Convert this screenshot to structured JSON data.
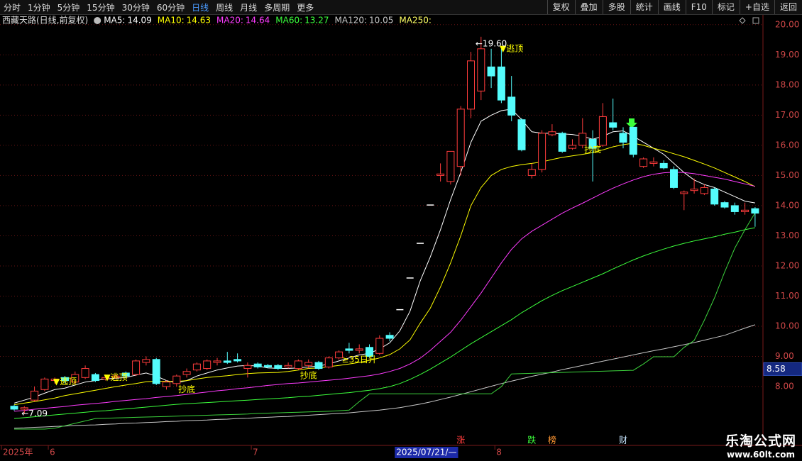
{
  "toolbar": {
    "left": [
      "分时",
      "1分钟",
      "5分钟",
      "15分钟",
      "30分钟",
      "60分钟",
      "日线",
      "周线",
      "月线",
      "多周期",
      "更多"
    ],
    "active": 6,
    "right": [
      "复权",
      "叠加",
      "多股",
      "统计",
      "画线",
      "F10",
      "标记",
      "+自选",
      "返回"
    ]
  },
  "watermark": {
    "title": "乐淘公式网",
    "url": "www.60lt.com"
  },
  "chart_data": {
    "type": "candlestick",
    "title": "西藏天路(日线,前复权)",
    "categories": [
      "2025年",
      null,
      null,
      null,
      "6",
      null,
      null,
      null,
      null,
      null,
      null,
      null,
      null,
      null,
      null,
      null,
      null,
      null,
      null,
      null,
      null,
      null,
      null,
      null,
      "7",
      null,
      null,
      null,
      null,
      null,
      null,
      null,
      null,
      null,
      null,
      null,
      null,
      null,
      "2025/07/21/—",
      null,
      null,
      null,
      null,
      null,
      null,
      null,
      null,
      null,
      "8",
      null,
      null,
      null,
      null,
      null,
      null,
      null,
      null,
      null,
      null,
      null,
      null,
      null,
      null,
      null,
      null,
      null,
      null,
      null,
      null,
      null,
      null,
      null,
      null,
      null
    ],
    "highlighted_category": 38,
    "open": [
      7.35,
      7.25,
      7.55,
      7.9,
      8.2,
      8.3,
      8.15,
      8.3,
      8.4,
      8.25,
      8.3,
      8.45,
      8.4,
      8.8,
      8.9,
      8.0,
      8.1,
      8.4,
      8.55,
      8.6,
      8.8,
      8.85,
      8.9,
      8.6,
      8.75,
      8.7,
      8.7,
      8.65,
      8.6,
      8.7,
      8.8,
      8.65,
      8.95,
      9.25,
      9.2,
      9.3,
      9.1,
      9.7,
      10.55,
      11.6,
      12.75,
      14.02,
      15.0,
      14.8,
      15.3,
      17.2,
      17.8,
      18.6,
      18.6,
      17.6,
      16.85,
      15.0,
      15.2,
      16.35,
      16.4,
      15.9,
      16.0,
      16.2,
      16.0,
      16.75,
      16.4,
      16.6,
      15.3,
      15.4,
      15.4,
      15.2,
      14.4,
      14.5,
      14.4,
      14.55,
      14.1,
      14.0,
      13.8,
      13.9
    ],
    "high": [
      7.4,
      7.35,
      8.0,
      8.3,
      8.3,
      8.35,
      8.5,
      8.7,
      8.45,
      8.4,
      8.4,
      8.5,
      8.9,
      9.0,
      8.95,
      8.2,
      8.4,
      8.6,
      8.8,
      8.9,
      8.95,
      9.15,
      9.1,
      8.8,
      8.8,
      8.75,
      8.75,
      8.8,
      8.9,
      8.9,
      8.85,
      9.0,
      9.2,
      9.45,
      9.4,
      9.4,
      9.7,
      9.8,
      10.55,
      11.6,
      12.75,
      14.02,
      15.4,
      15.8,
      17.3,
      19.1,
      19.6,
      19.2,
      19.2,
      18.3,
      16.9,
      15.4,
      16.5,
      16.7,
      16.45,
      16.2,
      16.9,
      16.5,
      17.4,
      17.55,
      16.6,
      16.6,
      15.6,
      15.6,
      15.5,
      15.3,
      14.5,
      14.9,
      14.7,
      14.6,
      14.15,
      14.1,
      14.1,
      13.95
    ],
    "low": [
      7.2,
      7.09,
      7.5,
      7.85,
      8.1,
      8.1,
      8.1,
      8.25,
      8.15,
      8.2,
      8.25,
      8.3,
      8.35,
      8.7,
      8.05,
      7.9,
      8.0,
      8.3,
      8.5,
      8.55,
      8.7,
      8.75,
      8.8,
      8.3,
      8.6,
      8.6,
      8.55,
      8.6,
      8.55,
      8.6,
      8.55,
      8.6,
      8.9,
      9.1,
      9.1,
      8.95,
      9.05,
      9.5,
      10.55,
      11.6,
      12.75,
      14.02,
      14.8,
      14.7,
      15.0,
      16.9,
      17.5,
      17.9,
      17.4,
      16.8,
      15.8,
      14.9,
      15.1,
      16.3,
      15.75,
      15.85,
      15.9,
      14.8,
      15.95,
      16.5,
      15.9,
      15.6,
      15.25,
      15.3,
      15.2,
      14.55,
      13.85,
      14.4,
      14.35,
      14.0,
      13.9,
      13.7,
      13.7,
      13.3
    ],
    "close": [
      7.25,
      7.3,
      7.85,
      8.25,
      8.25,
      8.2,
      8.4,
      8.6,
      8.2,
      8.3,
      8.35,
      8.35,
      8.85,
      8.9,
      8.1,
      8.15,
      8.35,
      8.5,
      8.75,
      8.85,
      8.85,
      8.8,
      8.85,
      8.7,
      8.65,
      8.65,
      8.6,
      8.7,
      8.85,
      8.8,
      8.6,
      8.95,
      9.15,
      9.2,
      9.25,
      9.0,
      9.6,
      9.6,
      10.55,
      11.6,
      12.75,
      14.02,
      15.05,
      15.8,
      17.2,
      18.8,
      19.2,
      18.3,
      17.5,
      17.0,
      15.85,
      15.2,
      16.4,
      16.45,
      15.8,
      16.0,
      16.4,
      15.9,
      16.95,
      16.6,
      16.1,
      15.7,
      15.55,
      15.45,
      15.25,
      14.6,
      14.45,
      14.55,
      14.6,
      14.05,
      13.95,
      13.8,
      13.85,
      13.75
    ],
    "up_color": "#ff3c3c",
    "down_color": "#54fcfc",
    "flat_color": "#ffffff",
    "series": [
      {
        "name": "MA5:",
        "color": "#ffffff",
        "values": [
          7.45,
          7.55,
          7.65,
          7.78,
          7.9,
          7.95,
          8.05,
          8.15,
          8.2,
          8.25,
          8.28,
          8.3,
          8.38,
          8.45,
          8.35,
          8.2,
          8.12,
          8.2,
          8.35,
          8.45,
          8.55,
          8.62,
          8.68,
          8.7,
          8.68,
          8.62,
          8.6,
          8.6,
          8.62,
          8.65,
          8.68,
          8.75,
          8.85,
          8.95,
          9.05,
          9.1,
          9.25,
          9.45,
          9.85,
          10.5,
          11.5,
          12.3,
          13.2,
          14.2,
          15.1,
          16.1,
          16.8,
          17.0,
          17.15,
          17.2,
          16.85,
          16.45,
          16.4,
          16.4,
          16.38,
          16.36,
          16.3,
          16.2,
          16.3,
          16.45,
          16.48,
          16.3,
          16.1,
          15.9,
          15.7,
          15.4,
          15.1,
          14.85,
          14.7,
          14.6,
          14.45,
          14.3,
          14.15,
          14.09
        ]
      },
      {
        "name": "MA10:",
        "color": "#ffff00",
        "values": [
          7.4,
          7.45,
          7.5,
          7.56,
          7.62,
          7.7,
          7.76,
          7.82,
          7.88,
          7.94,
          8.0,
          8.05,
          8.1,
          8.16,
          8.18,
          8.17,
          8.17,
          8.2,
          8.25,
          8.3,
          8.33,
          8.36,
          8.4,
          8.43,
          8.45,
          8.46,
          8.47,
          8.5,
          8.55,
          8.6,
          8.62,
          8.66,
          8.7,
          8.75,
          8.8,
          8.87,
          8.95,
          9.06,
          9.25,
          9.55,
          10.1,
          10.6,
          11.3,
          12.1,
          13.0,
          14.0,
          14.6,
          15.0,
          15.2,
          15.3,
          15.36,
          15.4,
          15.45,
          15.53,
          15.6,
          15.65,
          15.7,
          15.76,
          15.85,
          15.95,
          16.02,
          16.07,
          16.0,
          15.9,
          15.82,
          15.72,
          15.62,
          15.5,
          15.38,
          15.25,
          15.1,
          14.95,
          14.8,
          14.63
        ]
      },
      {
        "name": "MA20:",
        "color": "#ff3cff",
        "values": [
          7.18,
          7.21,
          7.25,
          7.28,
          7.31,
          7.34,
          7.38,
          7.41,
          7.44,
          7.47,
          7.51,
          7.54,
          7.57,
          7.6,
          7.64,
          7.67,
          7.7,
          7.74,
          7.78,
          7.82,
          7.86,
          7.89,
          7.93,
          7.96,
          8.0,
          8.04,
          8.07,
          8.1,
          8.12,
          8.15,
          8.18,
          8.21,
          8.24,
          8.28,
          8.32,
          8.36,
          8.42,
          8.5,
          8.6,
          8.75,
          8.94,
          9.2,
          9.5,
          9.8,
          10.2,
          10.65,
          11.1,
          11.6,
          12.1,
          12.55,
          12.9,
          13.15,
          13.35,
          13.55,
          13.75,
          13.92,
          14.08,
          14.25,
          14.42,
          14.58,
          14.72,
          14.85,
          14.96,
          15.04,
          15.09,
          15.11,
          15.1,
          15.06,
          15.0,
          14.94,
          14.88,
          14.8,
          14.72,
          14.64
        ]
      },
      {
        "name": "MA60:",
        "color": "#3cff3c",
        "values": [
          6.94,
          6.97,
          7.0,
          7.03,
          7.06,
          7.09,
          7.12,
          7.15,
          7.18,
          7.2,
          7.23,
          7.26,
          7.29,
          7.32,
          7.35,
          7.38,
          7.41,
          7.43,
          7.45,
          7.47,
          7.49,
          7.51,
          7.53,
          7.55,
          7.57,
          7.59,
          7.61,
          7.63,
          7.66,
          7.68,
          7.71,
          7.74,
          7.77,
          7.8,
          7.84,
          7.88,
          7.93,
          8.0,
          8.1,
          8.24,
          8.4,
          8.58,
          8.78,
          8.98,
          9.2,
          9.42,
          9.62,
          9.82,
          10.02,
          10.22,
          10.45,
          10.65,
          10.85,
          11.02,
          11.18,
          11.32,
          11.46,
          11.6,
          11.74,
          11.9,
          12.05,
          12.2,
          12.33,
          12.45,
          12.56,
          12.66,
          12.75,
          12.83,
          12.9,
          12.97,
          13.05,
          13.12,
          13.2,
          13.27
        ]
      },
      {
        "name": "MA120:",
        "color": "#c8c8c8",
        "values": [
          6.62,
          6.63,
          6.65,
          6.66,
          6.68,
          6.69,
          6.71,
          6.72,
          6.73,
          6.75,
          6.76,
          6.78,
          6.79,
          6.81,
          6.82,
          6.84,
          6.85,
          6.87,
          6.88,
          6.89,
          6.91,
          6.92,
          6.94,
          6.95,
          6.97,
          6.98,
          7.0,
          7.01,
          7.03,
          7.05,
          7.07,
          7.09,
          7.11,
          7.13,
          7.16,
          7.19,
          7.22,
          7.26,
          7.3,
          7.36,
          7.42,
          7.49,
          7.57,
          7.65,
          7.74,
          7.83,
          7.92,
          8.01,
          8.1,
          8.18,
          8.26,
          8.34,
          8.41,
          8.48,
          8.56,
          8.63,
          8.7,
          8.77,
          8.84,
          8.91,
          8.98,
          9.05,
          9.12,
          9.19,
          9.25,
          9.32,
          9.39,
          9.46,
          9.54,
          9.62,
          9.7,
          9.82,
          9.94,
          10.05
        ]
      },
      {
        "name": "MA250:",
        "color": "#ffff64",
        "values": [
          null,
          null,
          null,
          null,
          null,
          null,
          null,
          null,
          null,
          null,
          null,
          null,
          null,
          null,
          null,
          null,
          null,
          null,
          null,
          null,
          null,
          null,
          null,
          null,
          null,
          null,
          null,
          null,
          null,
          null,
          null,
          null,
          null,
          null,
          null,
          null,
          null,
          null,
          null,
          null,
          null,
          null,
          null,
          null,
          null,
          null,
          null,
          null,
          null,
          null,
          null,
          null,
          null,
          null,
          null,
          null,
          null,
          null,
          null,
          null,
          null,
          null,
          null,
          null,
          null,
          null,
          null,
          null,
          null,
          null,
          null,
          null,
          null,
          null
        ]
      },
      {
        "name": null,
        "color": "#3cd23c",
        "values": [
          6.59,
          6.59,
          6.59,
          6.59,
          6.62,
          6.7,
          6.78,
          6.86,
          6.94,
          6.95,
          6.96,
          6.97,
          6.98,
          6.99,
          7.0,
          7.01,
          7.02,
          7.03,
          7.04,
          7.05,
          7.06,
          7.07,
          7.08,
          7.09,
          7.11,
          7.12,
          7.13,
          7.14,
          7.15,
          7.16,
          7.17,
          7.18,
          7.2,
          7.22,
          7.5,
          7.76,
          7.76,
          7.76,
          7.76,
          7.76,
          7.76,
          7.76,
          7.76,
          7.76,
          7.76,
          7.76,
          7.76,
          7.76,
          8.0,
          8.42,
          8.43,
          8.44,
          8.45,
          8.46,
          8.47,
          8.48,
          8.49,
          8.5,
          8.51,
          8.52,
          8.53,
          8.54,
          8.75,
          8.99,
          8.99,
          8.99,
          9.3,
          9.53,
          10.2,
          10.94,
          11.8,
          12.59,
          13.2,
          13.76
        ]
      }
    ],
    "annotations": [
      {
        "text": "▼逃顶",
        "x": 5,
        "y": 8.15,
        "color": "#ffff00"
      },
      {
        "text": "▼逃顶",
        "x": 10,
        "y": 8.3,
        "color": "#ffff00"
      },
      {
        "text": "▼逃顶",
        "x": 49,
        "y": 19.2,
        "color": "#ffff00"
      },
      {
        "text": "抄底",
        "x": 17,
        "y": 7.9,
        "color": "#ffff00"
      },
      {
        "text": "抄底",
        "x": 29,
        "y": 8.35,
        "color": "#ffff00"
      },
      {
        "text": "抄底",
        "x": 57,
        "y": 15.85,
        "color": "#ffff00"
      },
      {
        "text": "≥35日升",
        "x": 34,
        "y": 8.88,
        "color": "#ffff00"
      },
      {
        "text": "←19.60",
        "x": 47,
        "y": 19.36,
        "color": "#ffffff"
      },
      {
        "text": "←7.09",
        "x": 2,
        "y": 7.1,
        "color": "#ffffff"
      }
    ],
    "event_markers": [
      {
        "text": "涨",
        "x": 44,
        "color": "#ff3c3c"
      },
      {
        "text": "跌",
        "x": 51,
        "color": "#3cff3c"
      },
      {
        "text": "榜",
        "x": 53,
        "color": "#ff9632"
      },
      {
        "text": "财",
        "x": 60,
        "color": "#c8e6ff"
      }
    ],
    "crosshair_price": 8.58,
    "ylim": [
      6.12,
      20.16
    ],
    "yticks": [
      {
        "value": 8,
        "label": "8.00"
      },
      {
        "value": 9,
        "label": "9.00"
      },
      {
        "value": 10,
        "label": "10.00"
      },
      {
        "value": 11,
        "label": "11.00"
      },
      {
        "value": 12,
        "label": "12.00"
      },
      {
        "value": 13,
        "label": "13.00"
      },
      {
        "value": 14,
        "label": "14.00"
      },
      {
        "value": 15,
        "label": "15.00"
      },
      {
        "value": 16,
        "label": "16.00"
      },
      {
        "value": 17,
        "label": "17.00"
      },
      {
        "value": 18,
        "label": "18.00"
      },
      {
        "value": 19,
        "label": "19.00"
      },
      {
        "value": 20,
        "label": "20.00"
      }
    ],
    "grid": true
  }
}
